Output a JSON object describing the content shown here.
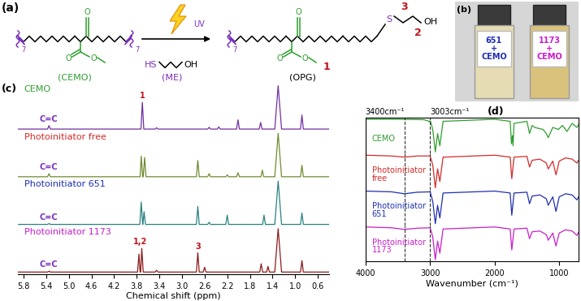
{
  "scheme": {
    "panel_label": "(a)",
    "reactant": "(CEMO)",
    "reagent": "(ME)",
    "product": "(OPG)",
    "condition": "UV",
    "reagent_groups": [
      "HS",
      "OH"
    ],
    "product_groups": [
      "S",
      "OH"
    ],
    "oxygen": "O",
    "repeat": "7",
    "carbon_numbers": [
      "1",
      "2",
      "3"
    ]
  },
  "photo": {
    "panel_label": "(b)",
    "vials": [
      {
        "label": [
          "651",
          "+",
          "CEMO"
        ],
        "color": "#2030B0"
      },
      {
        "label": [
          "1173",
          "+",
          "CEMO"
        ],
        "color": "#C81EC8"
      }
    ]
  },
  "chart_data": [
    {
      "type": "line",
      "panel_label": "(c)",
      "x_label": "Chemical shift (ppm)",
      "xlim": [
        5.9,
        0.4
      ],
      "xticks": [
        5.8,
        5.4,
        5.0,
        4.6,
        4.2,
        3.8,
        3.4,
        3.0,
        2.6,
        2.2,
        1.8,
        1.4,
        1.0,
        0.6
      ],
      "tick_labels": "x",
      "series": [
        {
          "name": "CEMO",
          "color": "#7030A0",
          "x": [
            5.9,
            5.375,
            5.35,
            5.325,
            3.725,
            3.7,
            3.675,
            3.475,
            3.45,
            3.425,
            2.545,
            2.52,
            2.495,
            2.375,
            2.35,
            2.325,
            2.035,
            2.01,
            1.985,
            1.635,
            1.61,
            1.585,
            1.36,
            1.3,
            1.24,
            0.905,
            0.88,
            0.855,
            0.4
          ],
          "values": [
            0.01,
            0.01,
            0.09,
            0.01,
            0.01,
            0.62,
            0.01,
            0.01,
            0.04,
            0.01,
            0.01,
            0.05,
            0.01,
            0.01,
            0.06,
            0.01,
            0.01,
            0.22,
            0.01,
            0.01,
            0.16,
            0.01,
            0.01,
            1.0,
            0.01,
            0.01,
            0.33,
            0.01,
            0.01
          ],
          "annotations": [
            {
              "text": "C=C",
              "x": 5.35
            },
            {
              "text": "1",
              "x": 3.7
            }
          ]
        },
        {
          "name": "Photoinitiator free",
          "color": "#6E8B2E",
          "x": [
            5.9,
            5.375,
            5.35,
            5.325,
            3.74,
            3.72,
            3.695,
            3.685,
            3.66,
            3.635,
            2.745,
            2.72,
            2.695,
            2.545,
            2.52,
            2.495,
            2.225,
            2.2,
            2.175,
            2.035,
            2.01,
            1.985,
            1.605,
            1.58,
            1.555,
            1.36,
            1.3,
            1.24,
            0.905,
            0.88,
            0.855,
            0.4
          ],
          "values": [
            0.01,
            0.01,
            0.08,
            0.01,
            0.01,
            0.48,
            0.01,
            0.01,
            0.45,
            0.01,
            0.01,
            0.38,
            0.01,
            0.01,
            0.08,
            0.01,
            0.01,
            0.05,
            0.01,
            0.01,
            0.1,
            0.01,
            0.01,
            0.16,
            0.01,
            0.01,
            1.0,
            0.01,
            0.01,
            0.27,
            0.01,
            0.01
          ],
          "annotations": [
            {
              "text": "C=C",
              "x": 5.35
            }
          ]
        },
        {
          "name": "Photoinitiator 651",
          "color": "#2A8080",
          "x": [
            5.9,
            5.375,
            5.35,
            5.325,
            3.745,
            3.72,
            3.695,
            3.69,
            3.67,
            3.645,
            2.745,
            2.72,
            2.695,
            2.545,
            2.52,
            2.495,
            2.225,
            2.2,
            2.175,
            1.575,
            1.55,
            1.525,
            1.36,
            1.3,
            1.24,
            0.905,
            0.88,
            0.855,
            0.4
          ],
          "values": [
            0.01,
            0.01,
            0.03,
            0.01,
            0.01,
            0.52,
            0.01,
            0.01,
            0.3,
            0.01,
            0.01,
            0.42,
            0.01,
            0.01,
            0.06,
            0.01,
            0.01,
            0.22,
            0.01,
            0.01,
            0.22,
            0.01,
            0.01,
            1.0,
            0.01,
            0.01,
            0.27,
            0.01,
            0.01
          ],
          "annotations": [
            {
              "text": "C=C",
              "x": 5.35
            }
          ]
        },
        {
          "name": "Photoinitiator 1173",
          "color": "#8B1A1A",
          "x": [
            5.9,
            5.375,
            5.35,
            5.325,
            3.785,
            3.76,
            3.74,
            3.73,
            3.71,
            3.685,
            3.475,
            3.45,
            3.425,
            2.745,
            2.72,
            2.695,
            2.625,
            2.6,
            2.575,
            1.625,
            1.6,
            1.575,
            1.505,
            1.48,
            1.455,
            1.36,
            1.3,
            1.24,
            0.905,
            0.88,
            0.855,
            0.4
          ],
          "values": [
            0.01,
            0.01,
            0.03,
            0.01,
            0.01,
            0.42,
            0.01,
            0.01,
            0.55,
            0.01,
            0.01,
            0.05,
            0.01,
            0.01,
            0.45,
            0.01,
            0.01,
            0.12,
            0.01,
            0.01,
            0.2,
            0.01,
            0.01,
            0.14,
            0.01,
            0.01,
            1.0,
            0.01,
            0.01,
            0.27,
            0.01,
            0.01
          ],
          "annotations": [
            {
              "text": "C=C",
              "x": 5.35
            },
            {
              "text": "1,2",
              "x": 3.735
            },
            {
              "text": "3",
              "x": 2.72
            }
          ]
        }
      ]
    },
    {
      "type": "line",
      "panel_label": "(d)",
      "x_label": "Wavenumber (cm⁻¹)",
      "xlim": [
        4000,
        700
      ],
      "xticks": [
        4000,
        3000,
        2000,
        1000
      ],
      "tick_labels": "x",
      "reference_lines": [
        {
          "x": 3400,
          "label": "3400cm⁻¹"
        },
        {
          "x": 3003,
          "label": "3003cm⁻¹"
        }
      ],
      "series": [
        {
          "name": "CEMO",
          "color": "#2E9E2E",
          "x": [
            4000,
            3500,
            3100,
            3010,
            3003,
            2995,
            2960,
            2920,
            2885,
            2850,
            2800,
            2000,
            1760,
            1740,
            1725,
            1715,
            1700,
            1500,
            1460,
            1420,
            1380,
            1250,
            1200,
            1170,
            1100,
            1010,
            950,
            880,
            800,
            725,
            700
          ],
          "values": [
            0.95,
            0.95,
            0.94,
            0.9,
            0.88,
            0.9,
            0.7,
            0.15,
            0.6,
            0.3,
            0.9,
            0.95,
            0.9,
            0.35,
            0.55,
            0.3,
            0.85,
            0.9,
            0.6,
            0.8,
            0.75,
            0.7,
            0.6,
            0.5,
            0.75,
            0.7,
            0.8,
            0.65,
            0.85,
            0.75,
            0.82
          ]
        },
        {
          "name": "Photoinitiator\nfree",
          "color": "#D42A2A",
          "x": [
            4000,
            3600,
            3400,
            3200,
            3000,
            2960,
            2920,
            2885,
            2850,
            2800,
            2000,
            1760,
            1735,
            1700,
            1500,
            1460,
            1420,
            1300,
            1200,
            1170,
            1100,
            1050,
            1000,
            900,
            800,
            725,
            700
          ],
          "values": [
            0.95,
            0.93,
            0.9,
            0.93,
            0.93,
            0.7,
            0.12,
            0.6,
            0.28,
            0.9,
            0.95,
            0.9,
            0.35,
            0.9,
            0.92,
            0.65,
            0.82,
            0.85,
            0.75,
            0.6,
            0.8,
            0.45,
            0.8,
            0.88,
            0.85,
            0.75,
            0.82
          ]
        },
        {
          "name": "Photoinitiator\n651",
          "color": "#1F2FB0",
          "x": [
            4000,
            3600,
            3400,
            3200,
            3000,
            2960,
            2920,
            2885,
            2850,
            2800,
            2000,
            1760,
            1735,
            1700,
            1500,
            1460,
            1420,
            1300,
            1200,
            1170,
            1100,
            1050,
            1000,
            900,
            800,
            725,
            700
          ],
          "values": [
            0.95,
            0.93,
            0.88,
            0.92,
            0.93,
            0.68,
            0.1,
            0.58,
            0.25,
            0.9,
            0.95,
            0.9,
            0.32,
            0.9,
            0.92,
            0.62,
            0.82,
            0.85,
            0.75,
            0.58,
            0.8,
            0.42,
            0.8,
            0.88,
            0.85,
            0.72,
            0.8
          ]
        },
        {
          "name": "Photoinitiator\n1173",
          "color": "#C81EC8",
          "x": [
            4000,
            3600,
            3400,
            3200,
            3000,
            2960,
            2920,
            2885,
            2850,
            2800,
            2000,
            1760,
            1735,
            1700,
            1500,
            1460,
            1420,
            1300,
            1200,
            1170,
            1100,
            1050,
            1000,
            900,
            800,
            725,
            700
          ],
          "values": [
            0.95,
            0.93,
            0.89,
            0.92,
            0.93,
            0.7,
            0.14,
            0.6,
            0.3,
            0.9,
            0.95,
            0.9,
            0.38,
            0.9,
            0.92,
            0.66,
            0.83,
            0.85,
            0.76,
            0.62,
            0.8,
            0.48,
            0.8,
            0.88,
            0.85,
            0.74,
            0.82
          ]
        }
      ]
    }
  ]
}
